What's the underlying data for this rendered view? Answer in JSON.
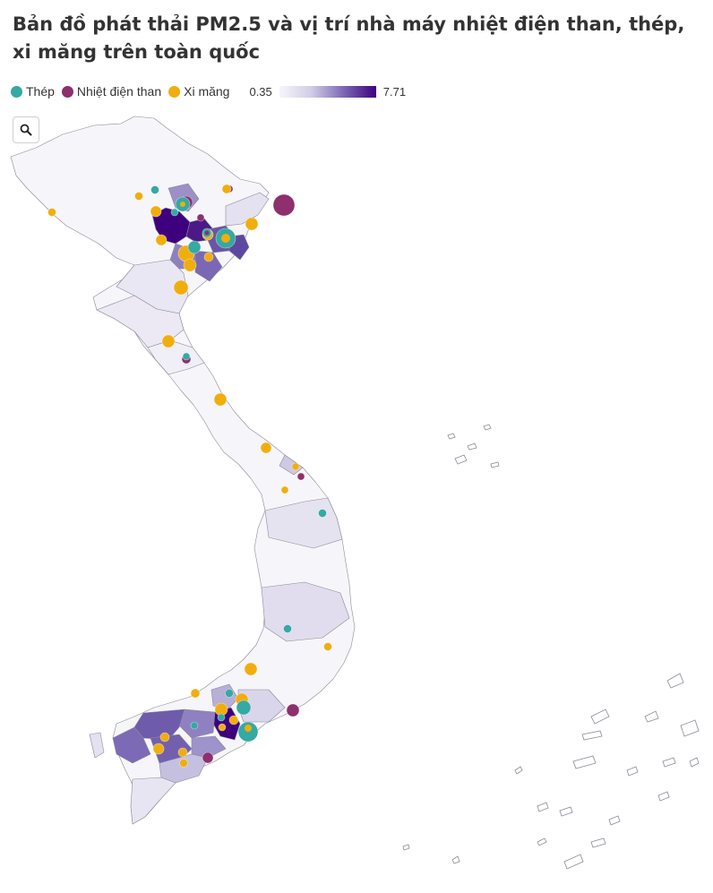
{
  "title": "Bản đồ phát thải PM2.5 và vị trí nhà máy nhiệt điện than, thép, xi măng trên toàn quốc",
  "legend": {
    "categories": [
      {
        "label": "Thép",
        "color": "#35a9a3"
      },
      {
        "label": "Nhiệt điện than",
        "color": "#8e2f6e"
      },
      {
        "label": "Xi măng",
        "color": "#f0ae0e"
      }
    ],
    "scale_min": "0.35",
    "scale_max": "7.71",
    "scale_colors": [
      "#f7f6fb",
      "#d0cce6",
      "#7b67b4",
      "#3f007d"
    ]
  },
  "zoom_icon": "search-icon",
  "colors": {
    "land_base": "#f6f5fa",
    "island_stroke": "#8a8a95"
  }
}
